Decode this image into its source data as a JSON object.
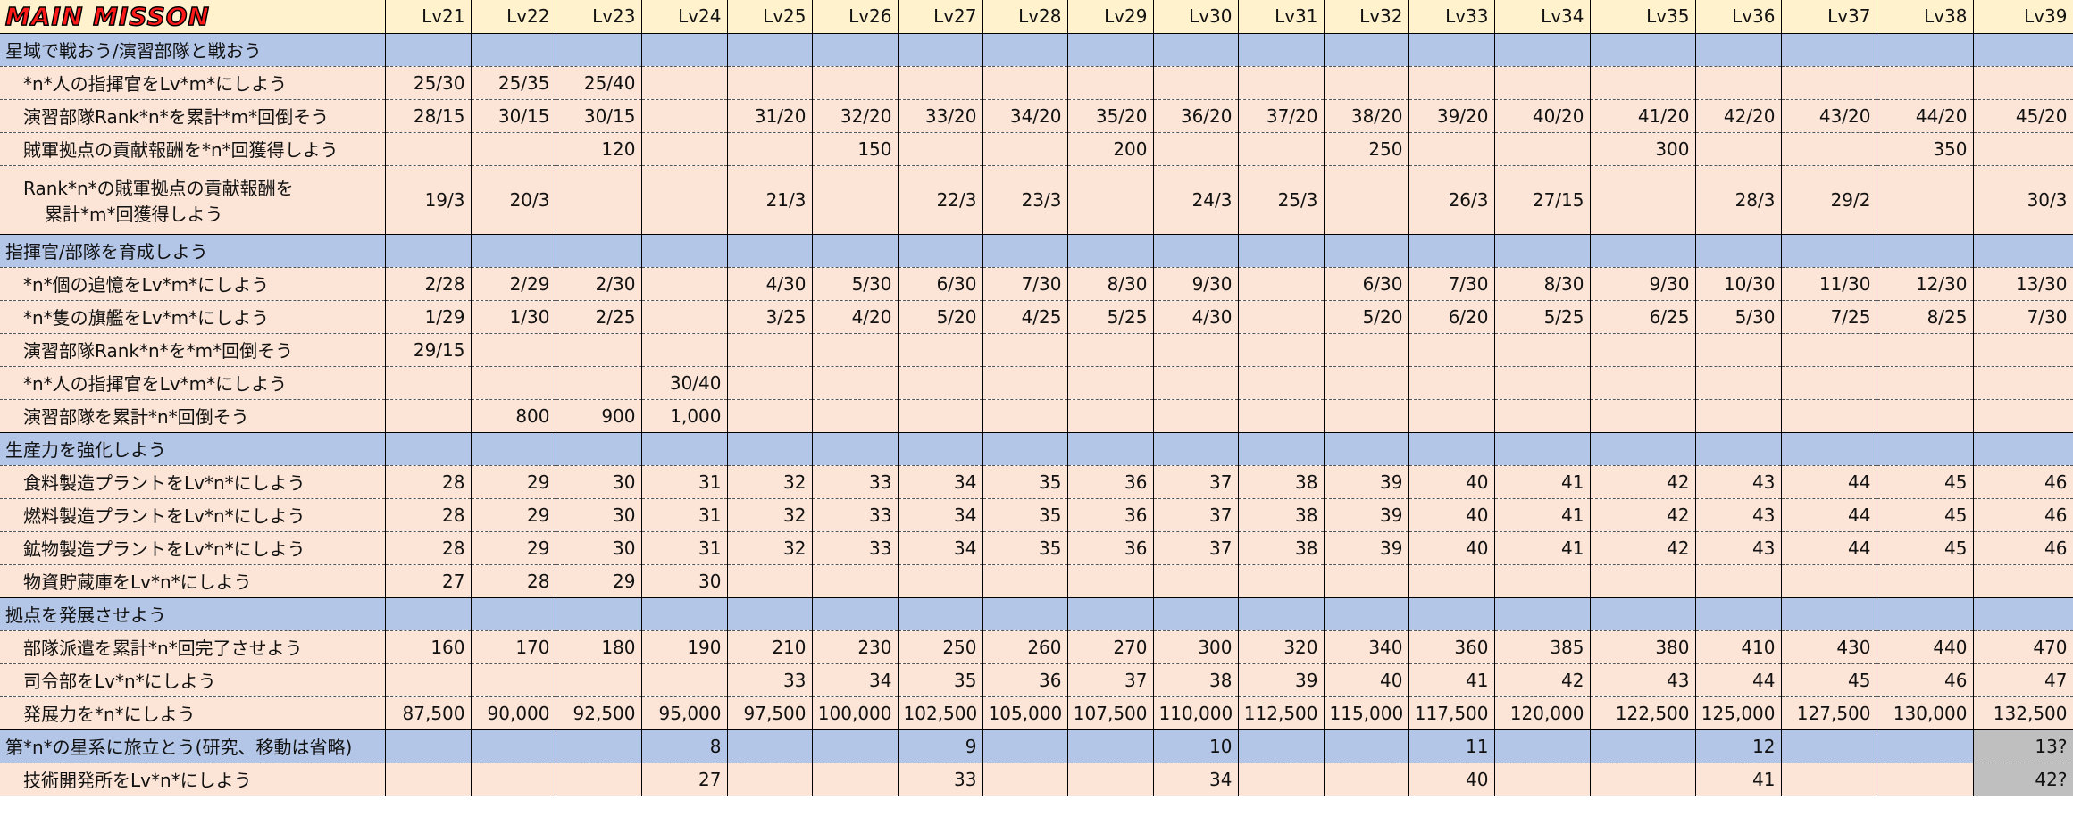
{
  "header": {
    "title": "MAIN MISSON",
    "levels": [
      "Lv21",
      "Lv22",
      "Lv23",
      "Lv24",
      "Lv25",
      "Lv26",
      "Lv27",
      "Lv28",
      "Lv29",
      "Lv30",
      "Lv31",
      "Lv32",
      "Lv33",
      "Lv34",
      "Lv35",
      "Lv36",
      "Lv37",
      "Lv38",
      "Lv39"
    ]
  },
  "sections": [
    {
      "title": "星域で戦おう/演習部隊と戦おう",
      "rows": [
        {
          "label": "*n*人の指揮官をLv*m*にしよう",
          "cells": [
            "25/30",
            "25/35",
            "25/40",
            null,
            null,
            null,
            null,
            null,
            null,
            null,
            null,
            null,
            null,
            null,
            null,
            null,
            null,
            null,
            null
          ]
        },
        {
          "label": "演習部隊Rank*n*を累計*m*回倒そう",
          "cells": [
            "28/15",
            "30/15",
            "30/15",
            null,
            "31/20",
            "32/20",
            "33/20",
            "34/20",
            "35/20",
            "36/20",
            "37/20",
            "38/20",
            "39/20",
            "40/20",
            "41/20",
            "42/20",
            "43/20",
            "44/20",
            "45/20"
          ]
        },
        {
          "label": "賊軍拠点の貢献報酬を*n*回獲得しよう",
          "cells": [
            null,
            null,
            "120",
            null,
            null,
            "150",
            null,
            null,
            "200",
            null,
            null,
            "250",
            null,
            null,
            "300",
            null,
            null,
            "350",
            null
          ]
        },
        {
          "label": [
            "Rank*n*の賊軍拠点の貢献報酬を",
            "累計*m*回獲得しよう"
          ],
          "cells": [
            "19/3",
            "20/3",
            null,
            null,
            "21/3",
            null,
            "22/3",
            "23/3",
            null,
            "24/3",
            "25/3",
            null,
            "26/3",
            "27/15",
            null,
            "28/3",
            "29/2",
            null,
            "30/3"
          ]
        }
      ]
    },
    {
      "title": "指揮官/部隊を育成しよう",
      "rows": [
        {
          "label": "*n*個の追憶をLv*m*にしよう",
          "cells": [
            "2/28",
            "2/29",
            "2/30",
            null,
            "4/30",
            "5/30",
            "6/30",
            "7/30",
            "8/30",
            "9/30",
            null,
            "6/30",
            "7/30",
            "8/30",
            "9/30",
            "10/30",
            "11/30",
            "12/30",
            "13/30"
          ]
        },
        {
          "label": "*n*隻の旗艦をLv*m*にしよう",
          "cells": [
            "1/29",
            "1/30",
            "2/25",
            null,
            "3/25",
            "4/20",
            "5/20",
            "4/25",
            "5/25",
            "4/30",
            null,
            "5/20",
            "6/20",
            "5/25",
            "6/25",
            "5/30",
            "7/25",
            "8/25",
            "7/30"
          ]
        },
        {
          "label": "演習部隊Rank*n*を*m*回倒そう",
          "cells": [
            "29/15",
            null,
            null,
            null,
            null,
            null,
            null,
            null,
            null,
            null,
            null,
            null,
            null,
            null,
            null,
            null,
            null,
            null,
            null
          ]
        },
        {
          "label": "*n*人の指揮官をLv*m*にしよう",
          "cells": [
            null,
            null,
            null,
            "30/40",
            null,
            null,
            null,
            null,
            null,
            null,
            null,
            null,
            null,
            null,
            null,
            null,
            null,
            null,
            null
          ]
        },
        {
          "label": "演習部隊を累計*n*回倒そう",
          "cells": [
            null,
            "800",
            "900",
            "1,000",
            null,
            null,
            null,
            null,
            null,
            null,
            null,
            null,
            null,
            null,
            null,
            null,
            null,
            null,
            null
          ]
        }
      ]
    },
    {
      "title": "生産力を強化しよう",
      "rows": [
        {
          "label": "食料製造プラントをLv*n*にしよう",
          "cells": [
            "28",
            "29",
            "30",
            "31",
            "32",
            "33",
            "34",
            "35",
            "36",
            "37",
            "38",
            "39",
            "40",
            "41",
            "42",
            "43",
            "44",
            "45",
            "46"
          ]
        },
        {
          "label": "燃料製造プラントをLv*n*にしよう",
          "cells": [
            "28",
            "29",
            "30",
            "31",
            "32",
            "33",
            "34",
            "35",
            "36",
            "37",
            "38",
            "39",
            "40",
            "41",
            "42",
            "43",
            "44",
            "45",
            "46"
          ]
        },
        {
          "label": "鉱物製造プラントをLv*n*にしよう",
          "cells": [
            "28",
            "29",
            "30",
            "31",
            "32",
            "33",
            "34",
            "35",
            "36",
            "37",
            "38",
            "39",
            "40",
            "41",
            "42",
            "43",
            "44",
            "45",
            "46"
          ]
        },
        {
          "label": "物資貯蔵庫をLv*n*にしよう",
          "cells": [
            "27",
            "28",
            "29",
            "30",
            null,
            null,
            null,
            null,
            null,
            null,
            null,
            null,
            null,
            null,
            null,
            null,
            null,
            null,
            null
          ]
        }
      ]
    },
    {
      "title": "拠点を発展させよう",
      "rows": [
        {
          "label": "部隊派遣を累計*n*回完了させよう",
          "cells": [
            "160",
            "170",
            "180",
            "190",
            "210",
            "230",
            "250",
            "260",
            "270",
            "300",
            "320",
            "340",
            "360",
            "385",
            "380",
            "410",
            "430",
            "440",
            "470"
          ]
        },
        {
          "label": "司令部をLv*n*にしよう",
          "cells": [
            null,
            null,
            null,
            null,
            "33",
            "34",
            "35",
            "36",
            "37",
            "38",
            "39",
            "40",
            "41",
            "42",
            "43",
            "44",
            "45",
            "46",
            "47"
          ]
        },
        {
          "label": "発展力を*n*にしよう",
          "cells": [
            "87,500",
            "90,000",
            "92,500",
            "95,000",
            "97,500",
            "100,000",
            "102,500",
            "105,000",
            "107,500",
            "110,000",
            "112,500",
            "115,000",
            "117,500",
            "120,000",
            "122,500",
            "125,000",
            "127,500",
            "130,000",
            "132,500"
          ]
        }
      ]
    },
    {
      "title": "第*n*の星系に旅立とう(研究、移動は省略)",
      "cells": [
        null,
        null,
        null,
        "8",
        null,
        null,
        "9",
        null,
        null,
        "10",
        null,
        null,
        "11",
        null,
        null,
        "12",
        null,
        null,
        "13?"
      ],
      "rows": [
        {
          "label": "技術開発所をLv*n*にしよう",
          "cells": [
            null,
            null,
            null,
            "27",
            null,
            null,
            "33",
            null,
            null,
            "34",
            null,
            null,
            "40",
            null,
            null,
            "41",
            null,
            null,
            "42?"
          ]
        }
      ]
    }
  ]
}
